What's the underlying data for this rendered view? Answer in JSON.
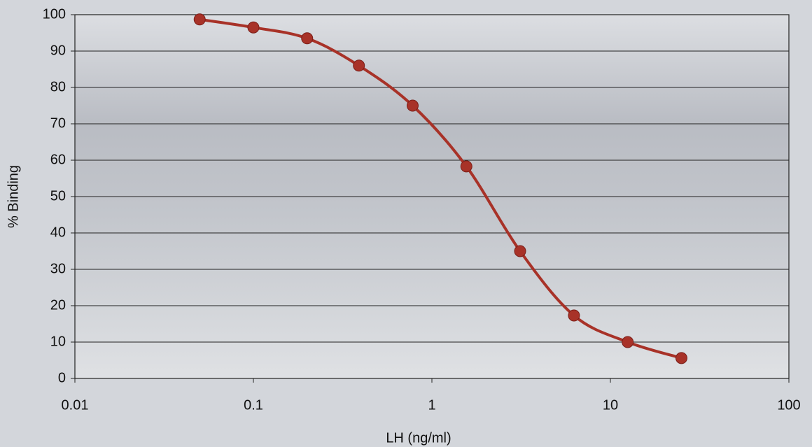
{
  "chart_data": {
    "type": "line",
    "xlabel": "LH (ng/ml)",
    "ylabel": "% Binding",
    "x": [
      0.05,
      0.1,
      0.2,
      0.39,
      0.78,
      1.56,
      3.12,
      6.25,
      12.5,
      25
    ],
    "values": [
      98.7,
      96.5,
      93.5,
      86,
      75,
      58.3,
      35,
      17.3,
      10,
      5.6
    ],
    "color": "#a83228",
    "xscale": "log",
    "xlim": [
      0.01,
      100
    ],
    "xticks": [
      0.01,
      0.1,
      1,
      10,
      100
    ],
    "ylim": [
      0,
      100
    ],
    "yticks": [
      0,
      10,
      20,
      30,
      40,
      50,
      60,
      70,
      80,
      90,
      100
    ],
    "grid": true
  }
}
